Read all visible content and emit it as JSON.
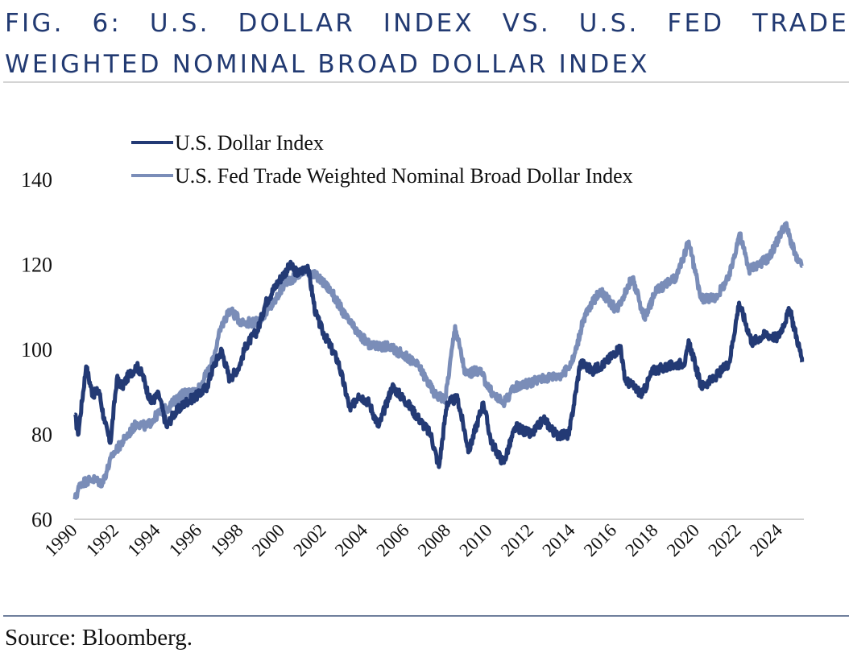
{
  "title": {
    "line1": "FIG. 6: U.S. DOLLAR INDEX VS. U.S. FED TRADE",
    "line2": "WEIGHTED NOMINAL BROAD DOLLAR INDEX"
  },
  "source": "Source: Bloomberg.",
  "colors": {
    "title": "#223a72",
    "dxy": "#233a75",
    "fed": "#7a8db8",
    "axis": "#cfcfcf"
  },
  "chart_data": {
    "type": "line",
    "title": "U.S. Dollar Index vs. U.S. Fed Trade Weighted Nominal Broad Dollar Index",
    "xlabel": "",
    "ylabel": "",
    "xlim": [
      1990,
      2025.1
    ],
    "ylim": [
      60,
      140
    ],
    "yticks": [
      60,
      80,
      100,
      120,
      140
    ],
    "xticks": [
      "1990",
      "1992",
      "1994",
      "1996",
      "1998",
      "2000",
      "2002",
      "2004",
      "2006",
      "2008",
      "2010",
      "2012",
      "2014",
      "2016",
      "2018",
      "2020",
      "2022",
      "2024"
    ],
    "legend_position": "top-left",
    "grid": false,
    "series": [
      {
        "name": "U.S. Dollar Index",
        "color": "#233a75",
        "points": [
          [
            1990.04,
            84.6
          ],
          [
            1990.19,
            79.9
          ],
          [
            1990.58,
            96.0
          ],
          [
            1990.89,
            89.4
          ],
          [
            1991.2,
            90.3
          ],
          [
            1991.48,
            82.7
          ],
          [
            1991.75,
            78.0
          ],
          [
            1992.06,
            93.0
          ],
          [
            1992.33,
            91.3
          ],
          [
            1992.64,
            94.0
          ],
          [
            1993.03,
            96.0
          ],
          [
            1993.3,
            94.0
          ],
          [
            1993.69,
            87.5
          ],
          [
            1994.08,
            89.4
          ],
          [
            1994.46,
            81.8
          ],
          [
            1994.78,
            84.6
          ],
          [
            1995.36,
            87.5
          ],
          [
            1996.02,
            89.4
          ],
          [
            1996.41,
            91.3
          ],
          [
            1996.72,
            96.0
          ],
          [
            1997.11,
            99.8
          ],
          [
            1997.5,
            93.0
          ],
          [
            1997.96,
            96.0
          ],
          [
            1998.27,
            100.8
          ],
          [
            1998.85,
            104.5
          ],
          [
            1999.24,
            111.0
          ],
          [
            1999.83,
            115.9
          ],
          [
            2000.41,
            119.7
          ],
          [
            2000.8,
            117.8
          ],
          [
            2001.26,
            119.7
          ],
          [
            2001.65,
            108.3
          ],
          [
            2001.96,
            104.5
          ],
          [
            2002.74,
            97.0
          ],
          [
            2003.32,
            85.6
          ],
          [
            2003.71,
            89.4
          ],
          [
            2004.21,
            87.5
          ],
          [
            2004.68,
            81.8
          ],
          [
            2005.34,
            91.3
          ],
          [
            2006.04,
            87.5
          ],
          [
            2006.62,
            83.7
          ],
          [
            2007.2,
            79.9
          ],
          [
            2007.59,
            72.3
          ],
          [
            2007.98,
            87.5
          ],
          [
            2008.49,
            88.4
          ],
          [
            2009.03,
            76.1
          ],
          [
            2009.73,
            87.5
          ],
          [
            2010.12,
            78.0
          ],
          [
            2010.7,
            73.3
          ],
          [
            2011.29,
            81.8
          ],
          [
            2012.06,
            79.9
          ],
          [
            2012.64,
            83.7
          ],
          [
            2013.24,
            79.9
          ],
          [
            2013.86,
            79.9
          ],
          [
            2014.41,
            97.0
          ],
          [
            2014.99,
            95.0
          ],
          [
            2015.65,
            97.0
          ],
          [
            2016.35,
            100.8
          ],
          [
            2016.54,
            93.0
          ],
          [
            2017.4,
            89.4
          ],
          [
            2017.9,
            95.0
          ],
          [
            2018.68,
            96.0
          ],
          [
            2019.46,
            97.0
          ],
          [
            2019.65,
            101.7
          ],
          [
            2020.23,
            91.3
          ],
          [
            2020.82,
            93.0
          ],
          [
            2021.59,
            97.0
          ],
          [
            2022.06,
            111.0
          ],
          [
            2022.68,
            101.7
          ],
          [
            2023.34,
            103.6
          ],
          [
            2023.92,
            102.7
          ],
          [
            2024.5,
            109.3
          ],
          [
            2025.09,
            97.9
          ],
          [
            2025.1,
            97.0
          ]
        ]
      },
      {
        "name": "U.S. Fed Trade Weighted Nominal Broad Dollar Index",
        "color": "#7a8db8",
        "points": [
          [
            1990.04,
            64.7
          ],
          [
            1990.31,
            68.5
          ],
          [
            1990.89,
            69.5
          ],
          [
            1991.36,
            68.5
          ],
          [
            1991.86,
            75.2
          ],
          [
            1992.45,
            79.0
          ],
          [
            1993.03,
            82.7
          ],
          [
            1993.5,
            81.8
          ],
          [
            1994.0,
            84.6
          ],
          [
            1994.58,
            86.5
          ],
          [
            1995.17,
            89.4
          ],
          [
            1995.94,
            90.3
          ],
          [
            1996.6,
            96.0
          ],
          [
            1997.11,
            105.5
          ],
          [
            1997.5,
            109.3
          ],
          [
            1998.08,
            106.4
          ],
          [
            1998.85,
            106.4
          ],
          [
            1999.63,
            111.0
          ],
          [
            2000.21,
            115.9
          ],
          [
            2000.6,
            116.9
          ],
          [
            2001.18,
            118.8
          ],
          [
            2001.77,
            116.9
          ],
          [
            2002.35,
            114.0
          ],
          [
            2003.13,
            107.4
          ],
          [
            2003.71,
            103.6
          ],
          [
            2004.29,
            100.8
          ],
          [
            2005.07,
            100.8
          ],
          [
            2005.84,
            98.9
          ],
          [
            2006.62,
            96.0
          ],
          [
            2007.4,
            89.4
          ],
          [
            2007.9,
            88.4
          ],
          [
            2008.37,
            105.5
          ],
          [
            2008.87,
            94.1
          ],
          [
            2009.53,
            95.1
          ],
          [
            2010.19,
            89.4
          ],
          [
            2010.7,
            87.5
          ],
          [
            2011.29,
            91.3
          ],
          [
            2012.06,
            92.3
          ],
          [
            2012.64,
            93.2
          ],
          [
            2013.61,
            94.2
          ],
          [
            2014.08,
            97.9
          ],
          [
            2014.58,
            107.4
          ],
          [
            2015.36,
            114.0
          ],
          [
            2016.14,
            109.3
          ],
          [
            2016.91,
            116.9
          ],
          [
            2017.5,
            107.4
          ],
          [
            2018.08,
            114.0
          ],
          [
            2019.05,
            116.9
          ],
          [
            2019.63,
            125.4
          ],
          [
            2020.21,
            112.1
          ],
          [
            2020.91,
            112.1
          ],
          [
            2021.57,
            116.9
          ],
          [
            2022.08,
            127.3
          ],
          [
            2022.54,
            118.8
          ],
          [
            2023.51,
            121.6
          ],
          [
            2024.29,
            129.6
          ],
          [
            2024.87,
            120.7
          ],
          [
            2025.1,
            119.7
          ]
        ]
      }
    ]
  }
}
